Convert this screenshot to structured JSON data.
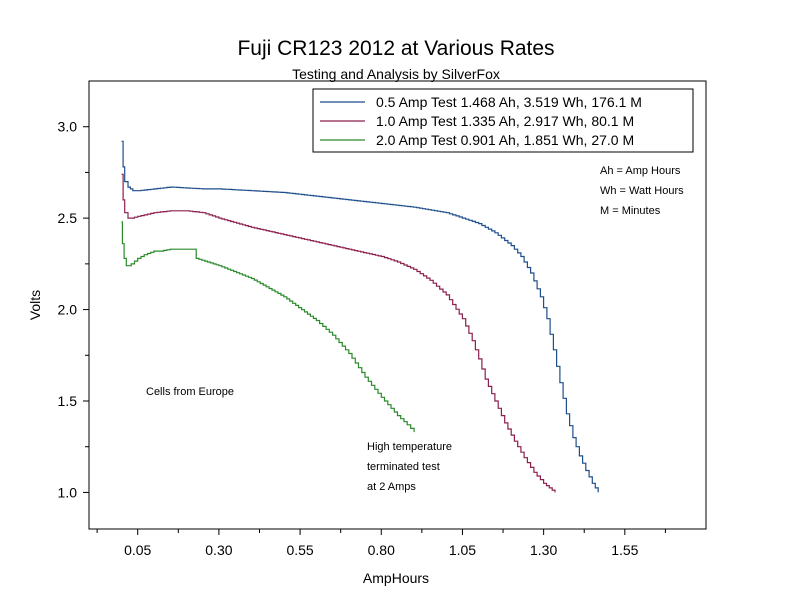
{
  "chart_data": {
    "type": "line",
    "title": "Fuji CR123 2012 at Various Rates",
    "subtitle": "Testing and Analysis by SilverFox",
    "xlabel": "AmpHours",
    "ylabel": "Volts",
    "xlim": [
      -0.1,
      1.8
    ],
    "ylim": [
      0.8,
      3.25
    ],
    "x_ticks": [
      0.05,
      0.3,
      0.55,
      0.8,
      1.05,
      1.3,
      1.55
    ],
    "x_tick_labels": [
      "0.05",
      "0.30",
      "0.55",
      "0.80",
      "1.05",
      "1.30",
      "1.55"
    ],
    "y_ticks": [
      1.0,
      1.5,
      2.0,
      2.5,
      3.0
    ],
    "y_tick_labels": [
      "1.0",
      "1.5",
      "2.0",
      "2.5",
      "3.0"
    ],
    "grid": false,
    "legend_position": "top-right",
    "series": [
      {
        "name": "0.5 Amp Test  1.468 Ah, 3.519 Wh, 176.1 M",
        "color": "#1f4e8c",
        "x": [
          0.0,
          0.005,
          0.01,
          0.02,
          0.035,
          0.05,
          0.1,
          0.15,
          0.2,
          0.25,
          0.3,
          0.35,
          0.4,
          0.5,
          0.6,
          0.7,
          0.8,
          0.9,
          1.0,
          1.05,
          1.1,
          1.15,
          1.2,
          1.23,
          1.26,
          1.29,
          1.31,
          1.33,
          1.35,
          1.37,
          1.39,
          1.41,
          1.43,
          1.45,
          1.468
        ],
        "y": [
          2.92,
          2.78,
          2.7,
          2.67,
          2.65,
          2.65,
          2.66,
          2.67,
          2.665,
          2.66,
          2.66,
          2.655,
          2.65,
          2.64,
          2.62,
          2.6,
          2.58,
          2.56,
          2.53,
          2.5,
          2.47,
          2.42,
          2.35,
          2.29,
          2.2,
          2.07,
          1.95,
          1.78,
          1.6,
          1.43,
          1.3,
          1.2,
          1.12,
          1.05,
          1.0
        ]
      },
      {
        "name": "1.0 Amp Test  1.335 Ah, 2.917 Wh, 80.1 M",
        "color": "#8c1f4e",
        "x": [
          0.0,
          0.005,
          0.01,
          0.02,
          0.03,
          0.05,
          0.1,
          0.15,
          0.2,
          0.25,
          0.3,
          0.4,
          0.5,
          0.6,
          0.7,
          0.8,
          0.85,
          0.9,
          0.95,
          1.0,
          1.05,
          1.08,
          1.1,
          1.12,
          1.15,
          1.18,
          1.21,
          1.24,
          1.27,
          1.3,
          1.335
        ],
        "y": [
          2.74,
          2.6,
          2.53,
          2.5,
          2.5,
          2.51,
          2.53,
          2.54,
          2.54,
          2.53,
          2.5,
          2.45,
          2.41,
          2.37,
          2.33,
          2.29,
          2.26,
          2.22,
          2.16,
          2.08,
          1.95,
          1.83,
          1.73,
          1.62,
          1.5,
          1.38,
          1.28,
          1.19,
          1.11,
          1.05,
          1.0
        ]
      },
      {
        "name": "2.0 Amp Test  0.901 Ah, 1.851 Wh, 27.0 M",
        "color": "#2a8a2a",
        "x": [
          0.0,
          0.003,
          0.008,
          0.015,
          0.02,
          0.03,
          0.05,
          0.07,
          0.1,
          0.12,
          0.15,
          0.2,
          0.22,
          0.23,
          0.3,
          0.4,
          0.5,
          0.6,
          0.65,
          0.7,
          0.75,
          0.8,
          0.85,
          0.88,
          0.901
        ],
        "y": [
          2.48,
          2.36,
          2.28,
          2.24,
          2.24,
          2.25,
          2.28,
          2.3,
          2.32,
          2.32,
          2.33,
          2.33,
          2.33,
          2.28,
          2.24,
          2.17,
          2.07,
          1.94,
          1.86,
          1.76,
          1.63,
          1.52,
          1.42,
          1.37,
          1.33
        ]
      }
    ],
    "annotations": {
      "ah_note": "Ah = Amp Hours",
      "wh_note": "Wh = Watt Hours",
      "m_note": "M = Minutes",
      "cells_note": "Cells from Europe",
      "temp_line1": "High temperature",
      "temp_line2": "terminated test",
      "temp_line3": "at 2 Amps"
    }
  }
}
